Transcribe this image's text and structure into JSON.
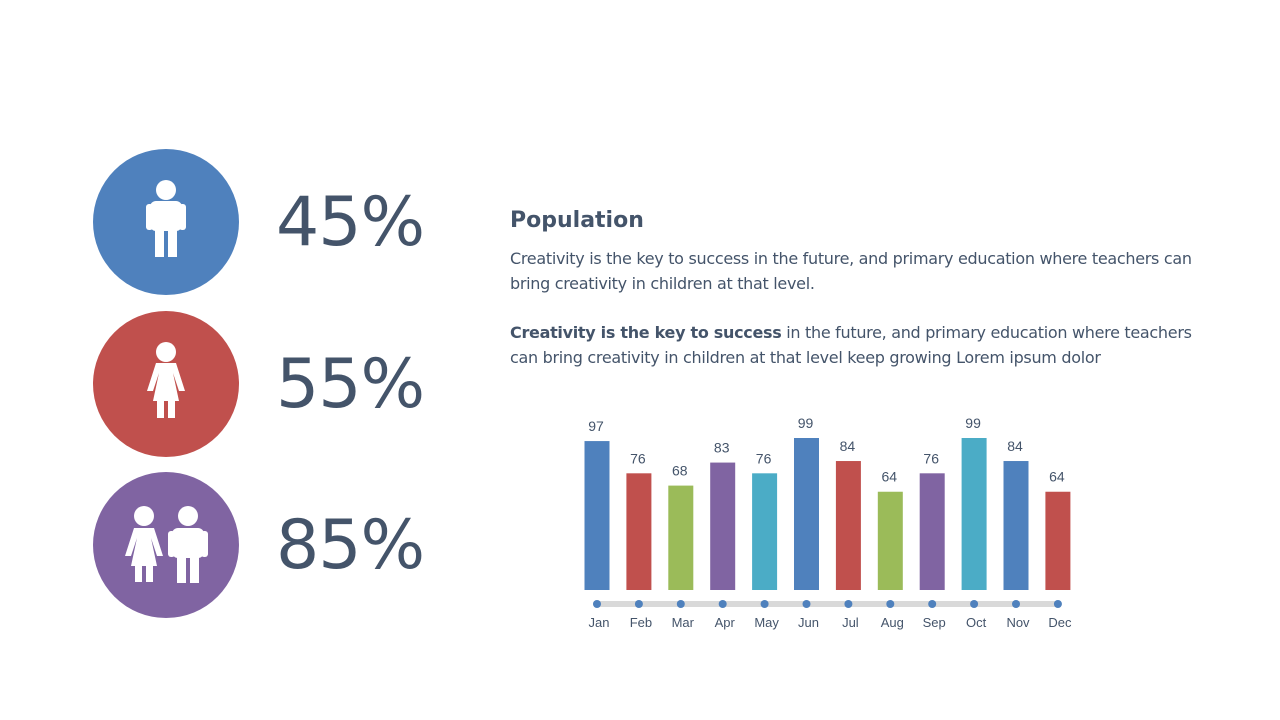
{
  "stats": [
    {
      "value": "45%",
      "color": "#4f81bd",
      "icon": "male-person-icon"
    },
    {
      "value": "55%",
      "color": "#c0504d",
      "icon": "female-person-icon"
    },
    {
      "value": "85%",
      "color": "#8064a2",
      "icon": "family-couple-icon"
    }
  ],
  "text": {
    "title": "Population",
    "para1": "Creativity is the key to success in the future, and primary education where teachers can bring creativity in children at that level.",
    "para2_bold": "Creativity is the key to success",
    "para2_rest": " in the future, and primary education where teachers can bring creativity in children at that level keep growing Lorem ipsum dolor"
  },
  "chart_data": {
    "type": "bar",
    "categories": [
      "Jan",
      "Feb",
      "Mar",
      "Apr",
      "May",
      "Jun",
      "Jul",
      "Aug",
      "Sep",
      "Oct",
      "Nov",
      "Dec"
    ],
    "values": [
      97,
      76,
      68,
      83,
      76,
      99,
      84,
      64,
      76,
      99,
      84,
      64
    ],
    "colors": [
      "#4f81bd",
      "#c0504d",
      "#9bbb59",
      "#8064a2",
      "#4bacc6",
      "#4f81bd",
      "#c0504d",
      "#9bbb59",
      "#8064a2",
      "#4bacc6",
      "#4f81bd",
      "#c0504d"
    ],
    "data_labels": true,
    "grid": false,
    "legend": "none",
    "axis_line_color": "#d9d9d9",
    "marker_color": "#4f81bd"
  }
}
